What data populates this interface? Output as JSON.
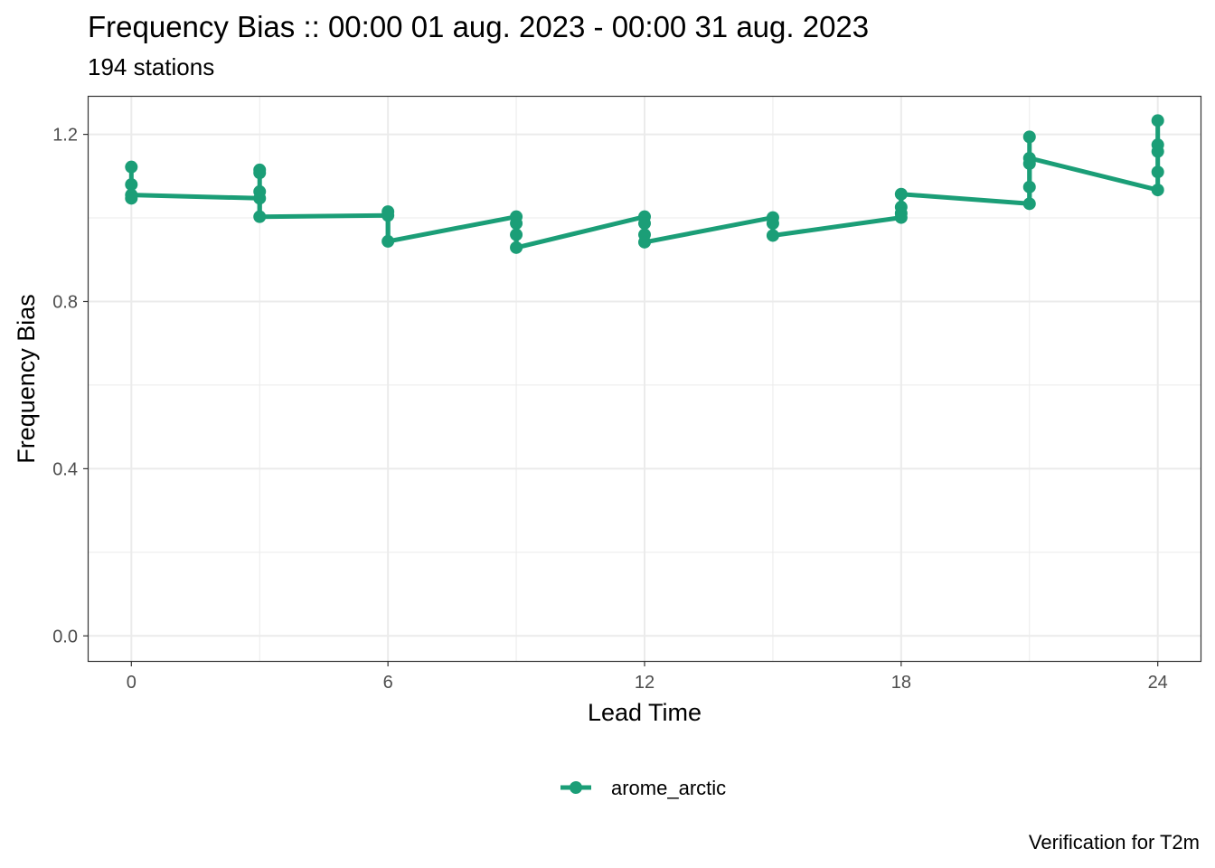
{
  "title": "Frequency Bias :: 00:00 01 aug. 2023 - 00:00 31 aug. 2023",
  "subtitle": "194 stations",
  "caption": "Verification for T2m",
  "colors": {
    "series": "#1b9e77",
    "grid": "#ebebeb",
    "panel_border": "#333333",
    "tick_text": "#4d4d4d"
  },
  "chart_data": {
    "type": "line",
    "xlabel": "Lead Time",
    "ylabel": "Frequency Bias",
    "xlim": [
      -1,
      25
    ],
    "ylim": [
      -0.06,
      1.29
    ],
    "x_ticks": [
      0,
      6,
      12,
      18,
      24
    ],
    "x_tick_labels": [
      "0",
      "6",
      "12",
      "18",
      "24"
    ],
    "y_ticks": [
      0.0,
      0.4,
      0.8,
      1.2
    ],
    "y_tick_labels": [
      "0.0",
      "0.4",
      "0.8",
      "1.2"
    ],
    "grid": true,
    "legend_position": "bottom",
    "series": [
      {
        "name": "arome_arctic",
        "color": "#1b9e77",
        "points": [
          {
            "x": 0,
            "y": 1.122
          },
          {
            "x": 0,
            "y": 1.08
          },
          {
            "x": 0,
            "y": 1.055
          },
          {
            "x": 0,
            "y": 1.047
          },
          {
            "x": 3,
            "y": 1.115
          },
          {
            "x": 3,
            "y": 1.108
          },
          {
            "x": 3,
            "y": 1.063
          },
          {
            "x": 3,
            "y": 1.047
          },
          {
            "x": 3,
            "y": 1.003
          },
          {
            "x": 6,
            "y": 1.015
          },
          {
            "x": 6,
            "y": 1.006
          },
          {
            "x": 6,
            "y": 0.944
          },
          {
            "x": 9,
            "y": 1.003
          },
          {
            "x": 9,
            "y": 0.987
          },
          {
            "x": 9,
            "y": 0.96
          },
          {
            "x": 9,
            "y": 0.929
          },
          {
            "x": 12,
            "y": 1.003
          },
          {
            "x": 12,
            "y": 0.987
          },
          {
            "x": 12,
            "y": 0.96
          },
          {
            "x": 12,
            "y": 0.942
          },
          {
            "x": 15,
            "y": 1.001
          },
          {
            "x": 15,
            "y": 0.987
          },
          {
            "x": 15,
            "y": 0.958
          },
          {
            "x": 18,
            "y": 1.057
          },
          {
            "x": 18,
            "y": 1.026
          },
          {
            "x": 18,
            "y": 1.011
          },
          {
            "x": 18,
            "y": 1.001
          },
          {
            "x": 21,
            "y": 1.194
          },
          {
            "x": 21,
            "y": 1.143
          },
          {
            "x": 21,
            "y": 1.13
          },
          {
            "x": 21,
            "y": 1.074
          },
          {
            "x": 21,
            "y": 1.034
          },
          {
            "x": 24,
            "y": 1.233
          },
          {
            "x": 24,
            "y": 1.175
          },
          {
            "x": 24,
            "y": 1.159
          },
          {
            "x": 24,
            "y": 1.11
          },
          {
            "x": 24,
            "y": 1.067
          }
        ],
        "line": [
          {
            "x": 0,
            "y": 1.055
          },
          {
            "x": 3,
            "y": 1.047
          },
          {
            "x": 3,
            "y": 1.003
          },
          {
            "x": 6,
            "y": 1.006
          },
          {
            "x": 6,
            "y": 0.944
          },
          {
            "x": 9,
            "y": 1.003
          },
          {
            "x": 9,
            "y": 0.929
          },
          {
            "x": 12,
            "y": 1.003
          },
          {
            "x": 12,
            "y": 0.942
          },
          {
            "x": 15,
            "y": 1.001
          },
          {
            "x": 15,
            "y": 0.958
          },
          {
            "x": 18,
            "y": 1.001
          },
          {
            "x": 18,
            "y": 1.057
          },
          {
            "x": 21,
            "y": 1.034
          },
          {
            "x": 21,
            "y": 1.143
          },
          {
            "x": 24,
            "y": 1.067
          }
        ],
        "vertical_ranges": [
          {
            "x": 0,
            "ymin": 1.047,
            "ymax": 1.122
          },
          {
            "x": 3,
            "ymin": 1.003,
            "ymax": 1.115
          },
          {
            "x": 6,
            "ymin": 0.944,
            "ymax": 1.015
          },
          {
            "x": 9,
            "ymin": 0.929,
            "ymax": 1.003
          },
          {
            "x": 12,
            "ymin": 0.942,
            "ymax": 1.003
          },
          {
            "x": 15,
            "ymin": 0.958,
            "ymax": 1.001
          },
          {
            "x": 18,
            "ymin": 1.001,
            "ymax": 1.057
          },
          {
            "x": 21,
            "ymin": 1.034,
            "ymax": 1.194
          },
          {
            "x": 24,
            "ymin": 1.067,
            "ymax": 1.233
          }
        ]
      }
    ]
  }
}
